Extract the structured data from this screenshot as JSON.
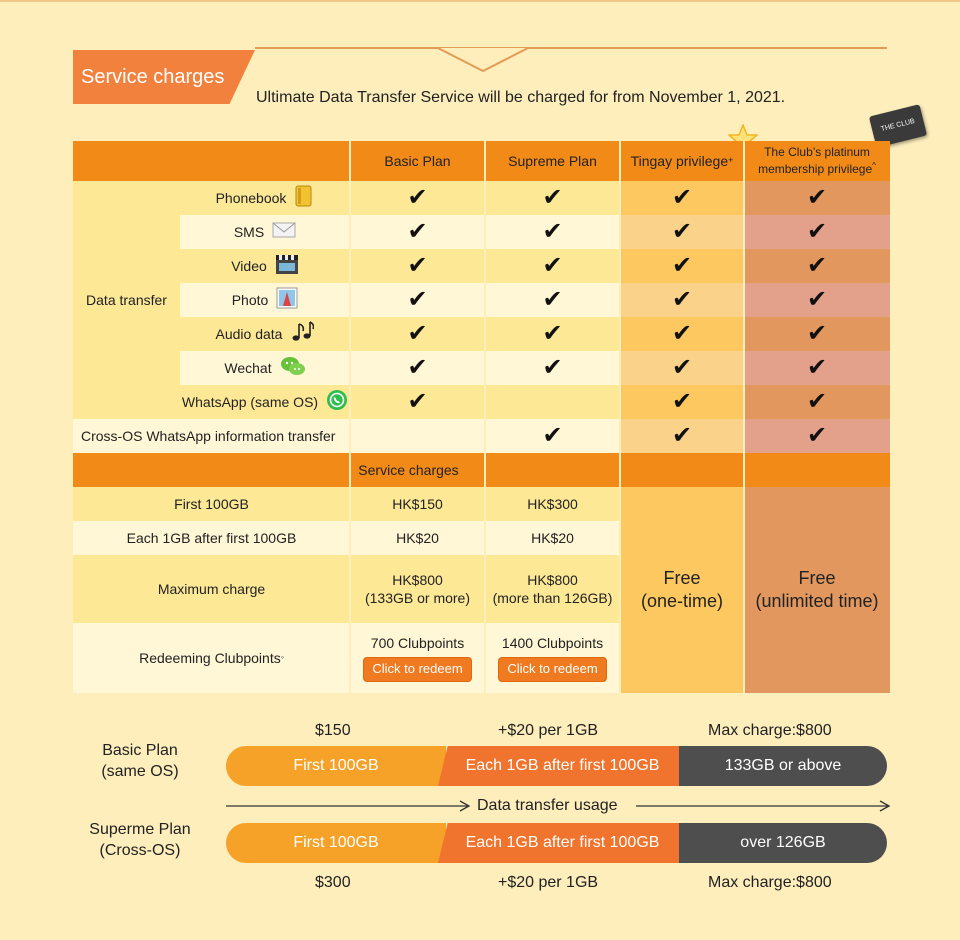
{
  "header": {
    "tab": "Service charges",
    "subtitle": "Ultimate Data Transfer Service will be charged for from November 1, 2021."
  },
  "club_card_text": "THE CLUB",
  "columns": {
    "basic": "Basic Plan",
    "supreme": "Supreme Plan",
    "tingay": "Tingay privilege",
    "tingay_sup": "+",
    "club": "The Club’s platinum membership privilege",
    "club_sup": "^"
  },
  "data_transfer": {
    "group_label": "Data transfer",
    "rows": [
      {
        "label": "Phonebook",
        "icon": "phonebook-icon",
        "basic": true,
        "supreme": true,
        "tingay": true,
        "club": true
      },
      {
        "label": "SMS",
        "icon": "envelope-icon",
        "basic": true,
        "supreme": true,
        "tingay": true,
        "club": true
      },
      {
        "label": "Video",
        "icon": "clapperboard-icon",
        "basic": true,
        "supreme": true,
        "tingay": true,
        "club": true
      },
      {
        "label": "Photo",
        "icon": "photo-icon",
        "basic": true,
        "supreme": true,
        "tingay": true,
        "club": true
      },
      {
        "label": "Audio data",
        "icon": "music-notes-icon",
        "basic": true,
        "supreme": true,
        "tingay": true,
        "club": true
      },
      {
        "label": "Wechat",
        "icon": "wechat-icon",
        "basic": true,
        "supreme": true,
        "tingay": true,
        "club": true
      },
      {
        "label": "WhatsApp (same OS)",
        "icon": "whatsapp-icon",
        "basic": true,
        "supreme": false,
        "tingay": true,
        "club": true
      }
    ],
    "cross_os": {
      "label": "Cross-OS WhatsApp information transfer",
      "basic": false,
      "supreme": true,
      "tingay": true,
      "club": true
    }
  },
  "check_glyph": "✔",
  "charges": {
    "header": "Service charges",
    "rows": [
      {
        "label": "First 100GB",
        "basic": "HK$150",
        "supreme": "HK$300"
      },
      {
        "label": "Each 1GB after first 100GB",
        "basic": "HK$20",
        "supreme": "HK$20"
      },
      {
        "label": "Maximum charge",
        "basic": "HK$800",
        "basic_note": "(133GB or more)",
        "supreme": "HK$800",
        "supreme_note": "(more than 126GB)"
      }
    ],
    "redeem": {
      "label": "Redeeming Clubpoints",
      "label_sup": "◦",
      "basic_points": "700 Clubpoints",
      "supreme_points": "1400 Clubpoints",
      "button": "Click to redeem"
    },
    "tingay_free": "Free",
    "tingay_free_note": "(one-time)",
    "club_free": "Free",
    "club_free_note": "(unlimited time)"
  },
  "bars": {
    "basic": {
      "label_line1": "Basic Plan",
      "label_line2": "(same OS)",
      "top": [
        "$150",
        "+$20 per 1GB",
        "Max charge:$800"
      ],
      "segments": [
        "First 100GB",
        "Each 1GB after first 100GB",
        "133GB or above"
      ]
    },
    "axis_label": "Data transfer usage",
    "supreme": {
      "label_line1": "Superme Plan",
      "label_line2": "(Cross-OS)",
      "bottom": [
        "$300",
        "+$20 per 1GB",
        "Max charge:$800"
      ],
      "segments": [
        "First 100GB",
        "Each 1GB after first 100GB",
        "over 126GB"
      ]
    }
  },
  "colors": {
    "background": "#fdeebc",
    "orange": "#f28a18",
    "tingay": "#fcc85f",
    "club": "#e1975e",
    "bar_dark": "#4e4e4e"
  }
}
